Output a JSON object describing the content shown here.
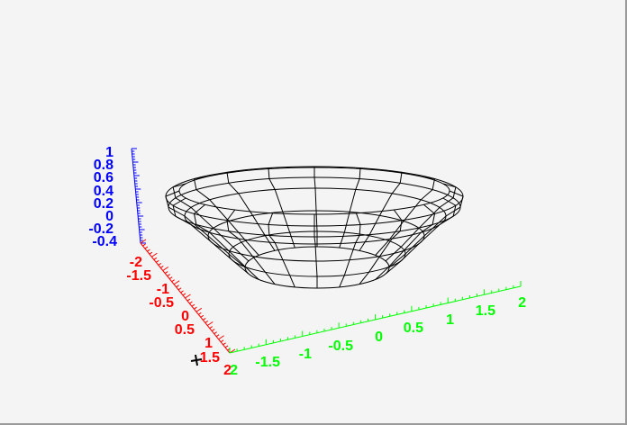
{
  "chart_data": {
    "type": "surface-wireframe",
    "x_axis": {
      "range": [
        -2,
        2
      ],
      "ticks": [
        "-2",
        "-1.5",
        "-1",
        "-0.5",
        "0",
        "0.5",
        "1",
        "1.5",
        "2"
      ],
      "color": "#ff0000"
    },
    "y_axis": {
      "range": [
        -2,
        2
      ],
      "ticks": [
        "-1.5",
        "-1",
        "-0.5",
        "0",
        "0.5",
        "1",
        "1.5",
        "2"
      ],
      "color": "#00ff00"
    },
    "z_axis": {
      "range": [
        -0.4,
        1
      ],
      "ticks": [
        "1",
        "0.8",
        "0.6",
        "0.4",
        "0.2",
        "0",
        "-0.2",
        "-0.4"
      ],
      "color": "#0000ff"
    },
    "surface_color": "#000000",
    "background": "#f4f4f4",
    "extra_y_label": "2"
  }
}
